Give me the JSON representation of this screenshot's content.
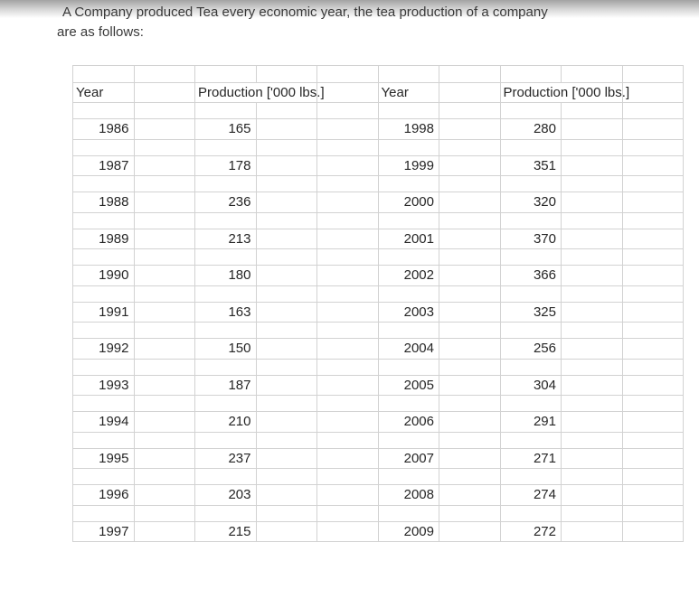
{
  "page": {
    "title_line1": "A Company produced Tea every economic year, the tea production of a company",
    "title_line2": "are as follows:"
  },
  "table": {
    "headers": {
      "year": "Year",
      "production": "Production ['000 lbs.]"
    },
    "rows": [
      {
        "year_left": "1986",
        "prod_left": "165",
        "year_right": "1998",
        "prod_right": "280"
      },
      {
        "year_left": "1987",
        "prod_left": "178",
        "year_right": "1999",
        "prod_right": "351"
      },
      {
        "year_left": "1988",
        "prod_left": "236",
        "year_right": "2000",
        "prod_right": "320"
      },
      {
        "year_left": "1989",
        "prod_left": "213",
        "year_right": "2001",
        "prod_right": "370"
      },
      {
        "year_left": "1990",
        "prod_left": "180",
        "year_right": "2002",
        "prod_right": "366"
      },
      {
        "year_left": "1991",
        "prod_left": "163",
        "year_right": "2003",
        "prod_right": "325"
      },
      {
        "year_left": "1992",
        "prod_left": "150",
        "year_right": "2004",
        "prod_right": "256"
      },
      {
        "year_left": "1993",
        "prod_left": "187",
        "year_right": "2005",
        "prod_right": "304"
      },
      {
        "year_left": "1994",
        "prod_left": "210",
        "year_right": "2006",
        "prod_right": "291"
      },
      {
        "year_left": "1995",
        "prod_left": "237",
        "year_right": "2007",
        "prod_right": "271"
      },
      {
        "year_left": "1996",
        "prod_left": "203",
        "year_right": "2008",
        "prod_right": "274"
      },
      {
        "year_left": "1997",
        "prod_left": "215",
        "year_right": "2009",
        "prod_right": "272"
      }
    ]
  },
  "colors": {
    "grid_line": "#d2d2d2",
    "table_text": "#262626",
    "title_text": "#383838",
    "top_gradient_start": "#a2a2a2",
    "background": "#ffffff"
  }
}
